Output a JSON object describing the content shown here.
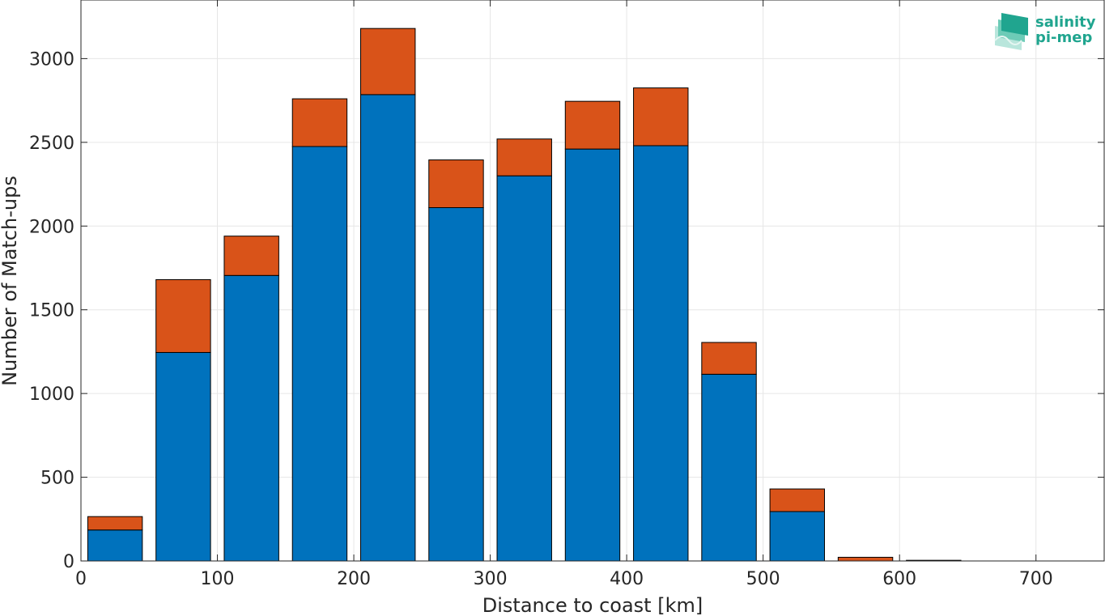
{
  "chart_data": {
    "type": "bar",
    "stacked": true,
    "title": "",
    "xlabel": "Distance to coast [km]",
    "ylabel": "Number of Match-ups",
    "bin_centers": [
      25,
      75,
      125,
      175,
      225,
      275,
      325,
      375,
      425,
      475,
      525,
      575,
      625,
      675,
      725
    ],
    "series": [
      {
        "color": "#0072bd",
        "values": [
          185,
          1245,
          1705,
          2475,
          2785,
          2110,
          2300,
          2460,
          2480,
          1115,
          295,
          0,
          0,
          0,
          0
        ]
      },
      {
        "color": "#d95319",
        "values": [
          80,
          435,
          235,
          285,
          395,
          285,
          220,
          285,
          345,
          190,
          135,
          22,
          4,
          0,
          0
        ]
      }
    ],
    "xlim": [
      0,
      750
    ],
    "ylim": [
      0,
      3350
    ],
    "xticks": [
      0,
      100,
      200,
      300,
      400,
      500,
      600,
      700
    ],
    "yticks": [
      0,
      500,
      1000,
      1500,
      2000,
      2500,
      3000
    ],
    "grid": true,
    "legend": "none"
  },
  "logo": {
    "line1": "salinity",
    "line2": "pi-mep",
    "color": "#20a58f"
  }
}
